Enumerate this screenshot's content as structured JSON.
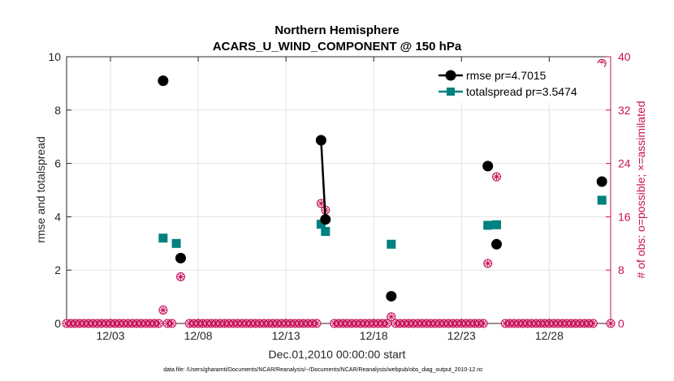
{
  "chart_data": {
    "type": "line",
    "title": [
      "Northern Hemisphere",
      "ACARS_U_WIND_COMPONENT @ 150 hPa"
    ],
    "xlabel": "Dec.01,2010 00:00:00 start",
    "ylabel_left": "rmse and totalspread",
    "ylabel_right": "# of obs: o=possible; ×=assimilated",
    "footnote": "data file: /Users/gharamti/Documents/NCAR/Reanalysis/~/Documents/NCAR/Reanalysis/webpub/obs_diag_output_2010-12.nc",
    "xlim": [
      0.5,
      31.5
    ],
    "ylim_left": [
      0,
      10
    ],
    "ylim_right": [
      0,
      40
    ],
    "x_tick_values": [
      3,
      8,
      13,
      18,
      23,
      28
    ],
    "x_tick_labels": [
      "12/03",
      "12/08",
      "12/13",
      "12/18",
      "12/23",
      "12/28"
    ],
    "y_left_ticks": [
      0,
      2,
      4,
      6,
      8,
      10
    ],
    "y_right_ticks": [
      0,
      8,
      16,
      24,
      32,
      40
    ],
    "colors": {
      "rmse": "#000000",
      "spread": "#008080",
      "obs": "#c8105a",
      "grid": "#e3e3e3"
    },
    "series": [
      {
        "name": "rmse",
        "legend": "rmse pr=4.7015",
        "points": [
          [
            6.0,
            9.1
          ],
          [
            7.0,
            2.45
          ],
          [
            15.0,
            6.87
          ],
          [
            15.25,
            3.9
          ],
          [
            19.0,
            1.02
          ],
          [
            24.5,
            5.9
          ],
          [
            25.0,
            2.97
          ],
          [
            31.0,
            5.32
          ]
        ],
        "segments": [
          [
            [
              15.0,
              6.87
            ],
            [
              15.25,
              3.9
            ]
          ]
        ]
      },
      {
        "name": "totalspread",
        "legend": "totalspread pr=3.5474",
        "points": [
          [
            6.0,
            3.2
          ],
          [
            6.75,
            3.0
          ],
          [
            15.0,
            3.72
          ],
          [
            15.25,
            3.45
          ],
          [
            19.0,
            2.97
          ],
          [
            24.5,
            3.68
          ],
          [
            25.0,
            3.7
          ],
          [
            31.0,
            4.62
          ]
        ]
      },
      {
        "name": "obs_possible",
        "axis": "right",
        "points": [
          [
            6.0,
            2
          ],
          [
            7.0,
            7
          ],
          [
            15.0,
            18
          ],
          [
            15.25,
            17
          ],
          [
            19.0,
            1
          ],
          [
            24.5,
            9
          ],
          [
            25.0,
            22
          ],
          [
            31.0,
            39
          ]
        ]
      },
      {
        "name": "obs_assimilated",
        "axis": "right",
        "points": [
          [
            6.0,
            2
          ],
          [
            7.0,
            7
          ],
          [
            15.0,
            18
          ],
          [
            15.25,
            17
          ],
          [
            19.0,
            1
          ],
          [
            24.5,
            9
          ],
          [
            25.0,
            22
          ],
          [
            31.0,
            39
          ]
        ]
      }
    ],
    "zero_obs_x": [
      0.5,
      0.75,
      1.0,
      1.25,
      1.5,
      1.75,
      2.0,
      2.25,
      2.5,
      2.75,
      3.0,
      3.25,
      3.5,
      3.75,
      4.0,
      4.25,
      4.5,
      4.75,
      5.0,
      5.25,
      5.5,
      5.75,
      6.25,
      6.5,
      7.5,
      7.75,
      8.0,
      8.25,
      8.5,
      8.75,
      9.0,
      9.25,
      9.5,
      9.75,
      10.0,
      10.25,
      10.5,
      10.75,
      11.0,
      11.25,
      11.5,
      11.75,
      12.0,
      12.25,
      12.5,
      12.75,
      13.0,
      13.25,
      13.5,
      13.75,
      14.0,
      14.25,
      14.5,
      14.75,
      15.75,
      16.0,
      16.25,
      16.5,
      16.75,
      17.0,
      17.25,
      17.5,
      17.75,
      18.0,
      18.25,
      18.5,
      18.75,
      19.25,
      19.5,
      19.75,
      20.0,
      20.25,
      20.5,
      20.75,
      21.0,
      21.25,
      21.5,
      21.75,
      22.0,
      22.25,
      22.5,
      22.75,
      23.0,
      23.25,
      23.5,
      23.75,
      24.0,
      24.25,
      25.5,
      25.75,
      26.0,
      26.25,
      26.5,
      26.75,
      27.0,
      27.25,
      27.5,
      27.75,
      28.0,
      28.25,
      28.5,
      28.75,
      29.0,
      29.25,
      29.5,
      29.75,
      30.0,
      30.25,
      30.5,
      31.5
    ]
  }
}
